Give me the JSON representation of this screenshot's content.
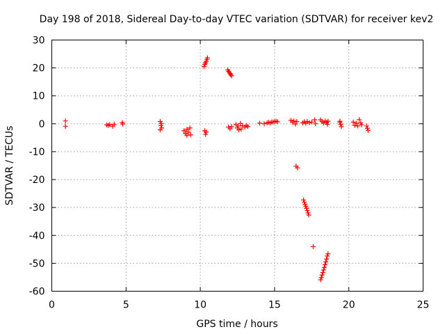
{
  "chart_data": {
    "type": "scatter",
    "title": "Day 198 of 2018, Sidereal Day-to-day VTEC variation (SDTVAR) for receiver kev2",
    "xlabel": "GPS time / hours",
    "ylabel": "SDTVAR / TECUs",
    "xlim": [
      0,
      25
    ],
    "ylim": [
      -60,
      30
    ],
    "xticks": [
      0,
      5,
      10,
      15,
      20,
      25
    ],
    "yticks": [
      30,
      20,
      10,
      0,
      -10,
      -20,
      -30,
      -40,
      -50,
      -60
    ],
    "grid": true,
    "marker": "+",
    "color": "#ff0000",
    "series": [
      {
        "name": "SDTVAR",
        "points": [
          [
            0.92,
            1.0
          ],
          [
            0.92,
            -0.9
          ],
          [
            3.7,
            -0.4
          ],
          [
            3.8,
            -0.6
          ],
          [
            3.9,
            -0.3
          ],
          [
            4.1,
            -0.9
          ],
          [
            4.2,
            -0.2
          ],
          [
            4.75,
            0.4
          ],
          [
            4.78,
            -0.1
          ],
          [
            7.3,
            0.8
          ],
          [
            7.35,
            -0.6
          ],
          [
            7.4,
            -1.5
          ],
          [
            7.38,
            0.1
          ],
          [
            7.3,
            -2.2
          ],
          [
            8.9,
            -2.5
          ],
          [
            9.0,
            -3.5
          ],
          [
            9.1,
            -2.0
          ],
          [
            9.2,
            -3.0
          ],
          [
            9.3,
            -1.5
          ],
          [
            9.35,
            -4.0
          ],
          [
            9.1,
            -4.2
          ],
          [
            10.3,
            -2.5
          ],
          [
            10.35,
            -3.8
          ],
          [
            10.4,
            -3.0
          ],
          [
            10.25,
            20.5
          ],
          [
            10.3,
            21.3
          ],
          [
            10.35,
            21.8
          ],
          [
            10.4,
            22.4
          ],
          [
            10.45,
            23.1
          ],
          [
            10.48,
            23.6
          ],
          [
            11.85,
            19.3
          ],
          [
            11.9,
            18.8
          ],
          [
            11.95,
            18.4
          ],
          [
            12.0,
            18.0
          ],
          [
            12.05,
            17.6
          ],
          [
            12.1,
            17.2
          ],
          [
            11.9,
            -1.2
          ],
          [
            12.0,
            -1.8
          ],
          [
            12.1,
            -1.0
          ],
          [
            12.4,
            -0.3
          ],
          [
            12.5,
            -1.5
          ],
          [
            12.55,
            -0.8
          ],
          [
            12.6,
            -2.2
          ],
          [
            12.7,
            0.1
          ],
          [
            12.75,
            -1.9
          ],
          [
            12.85,
            -0.7
          ],
          [
            13.0,
            -1.2
          ],
          [
            13.1,
            -0.6
          ],
          [
            13.2,
            -1.0
          ],
          [
            14.0,
            0.2
          ],
          [
            14.3,
            0.0
          ],
          [
            14.5,
            0.3
          ],
          [
            14.6,
            0.5
          ],
          [
            14.7,
            0.3
          ],
          [
            14.8,
            0.6
          ],
          [
            14.9,
            0.6
          ],
          [
            15.0,
            0.7
          ],
          [
            15.1,
            0.9
          ],
          [
            15.2,
            0.7
          ],
          [
            16.1,
            1.2
          ],
          [
            16.2,
            0.6
          ],
          [
            16.3,
            1.0
          ],
          [
            16.4,
            -0.1
          ],
          [
            16.5,
            0.8
          ],
          [
            16.9,
            0.3
          ],
          [
            17.0,
            0.7
          ],
          [
            17.1,
            0.2
          ],
          [
            17.2,
            0.8
          ],
          [
            17.35,
            0.4
          ],
          [
            17.5,
            0.6
          ],
          [
            17.7,
            1.4
          ],
          [
            17.75,
            0.0
          ],
          [
            18.1,
            1.4
          ],
          [
            18.2,
            0.8
          ],
          [
            18.3,
            0.3
          ],
          [
            18.4,
            1.0
          ],
          [
            18.5,
            0.5
          ],
          [
            18.55,
            -0.2
          ],
          [
            18.6,
            0.9
          ],
          [
            19.4,
            0.5
          ],
          [
            19.5,
            -1.0
          ],
          [
            19.45,
            -0.2
          ],
          [
            19.4,
            0.9
          ],
          [
            20.3,
            0.6
          ],
          [
            20.4,
            -0.6
          ],
          [
            20.5,
            0.2
          ],
          [
            20.6,
            -0.8
          ],
          [
            20.7,
            1.5
          ],
          [
            20.8,
            0.3
          ],
          [
            20.85,
            -0.4
          ],
          [
            21.2,
            -0.8
          ],
          [
            21.25,
            -1.6
          ],
          [
            21.3,
            -2.4
          ],
          [
            16.45,
            -15.2
          ],
          [
            16.55,
            -15.8
          ],
          [
            16.95,
            -27.3
          ],
          [
            17.0,
            -28.1
          ],
          [
            17.05,
            -28.9
          ],
          [
            17.1,
            -29.6
          ],
          [
            17.15,
            -30.3
          ],
          [
            17.2,
            -31.1
          ],
          [
            17.25,
            -31.9
          ],
          [
            17.3,
            -32.7
          ],
          [
            17.6,
            -44.0
          ],
          [
            18.1,
            -55.9
          ],
          [
            18.15,
            -55.1
          ],
          [
            18.2,
            -54.2
          ],
          [
            18.25,
            -53.3
          ],
          [
            18.3,
            -52.4
          ],
          [
            18.35,
            -51.5
          ],
          [
            18.4,
            -50.5
          ],
          [
            18.45,
            -49.5
          ],
          [
            18.5,
            -48.5
          ],
          [
            18.55,
            -47.4
          ],
          [
            18.6,
            -46.6
          ]
        ]
      }
    ]
  }
}
